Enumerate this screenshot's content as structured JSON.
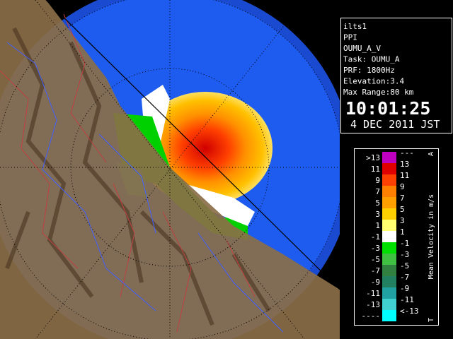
{
  "info": {
    "lines": [
      "ilts1",
      "PPI",
      "OUMU_A_V",
      "Task: OUMU_A",
      "PRF: 1800Hz",
      "Elevation:3.4",
      "Max Range:80 km"
    ],
    "time": "10:01:25",
    "date": "4 DEC 2011 JST"
  },
  "legend": {
    "title": "Mean Velocity in m/s",
    "top_mark": "A",
    "bottom_mark": "T",
    "rows": [
      {
        "low": ">13",
        "high": "---",
        "color": "#c000c0"
      },
      {
        "low": "11",
        "high": "13",
        "color": "#e00000"
      },
      {
        "low": "9",
        "high": "11",
        "color": "#ff4000"
      },
      {
        "low": "7",
        "high": "9",
        "color": "#ff8000"
      },
      {
        "low": "5",
        "high": "7",
        "color": "#ffa000"
      },
      {
        "low": "3",
        "high": "5",
        "color": "#ffd000"
      },
      {
        "low": "1",
        "high": "3",
        "color": "#ffff70"
      },
      {
        "low": "-1",
        "high": "1",
        "color": "#ffffff"
      },
      {
        "low": "-3",
        "high": "-1",
        "color": "#00e000"
      },
      {
        "low": "-5",
        "high": "-3",
        "color": "#40c040"
      },
      {
        "low": "-7",
        "high": "-5",
        "color": "#308040"
      },
      {
        "low": "-9",
        "high": "-7",
        "color": "#208060"
      },
      {
        "low": "-11",
        "high": "-9",
        "color": "#20a0a0"
      },
      {
        "low": "-13",
        "high": "-11",
        "color": "#40d0d0"
      },
      {
        "low": "----",
        "high": "<-13",
        "color": "#00ffff"
      }
    ]
  }
}
